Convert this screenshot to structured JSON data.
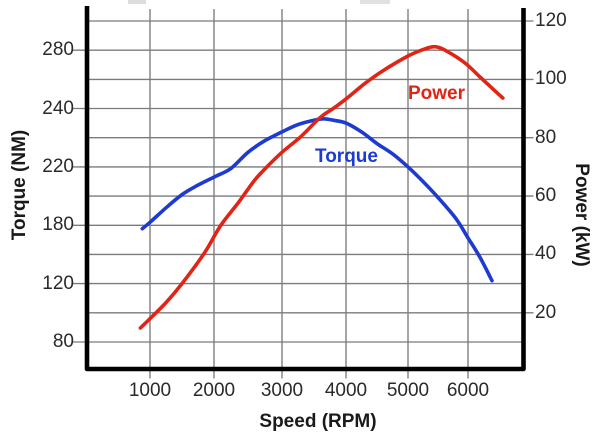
{
  "chart": {
    "x_axis": {
      "label": "Speed (RPM)",
      "ticks": [
        "1000",
        "2000",
        "3000",
        "4000",
        "5000",
        "6000"
      ]
    },
    "y_left_axis": {
      "label": "Torque (NM)",
      "ticks": [
        "280",
        "240",
        "220",
        "180",
        "120",
        "80"
      ]
    },
    "y_right_axis": {
      "label": "Power (kW)",
      "ticks": [
        "120",
        "100",
        "80",
        "60",
        "40",
        "20"
      ]
    },
    "curve_labels": {
      "power": "Power",
      "torque": "Torque"
    },
    "colors": {
      "power_red": "#e02416",
      "torque_blue": "#1d3ad1",
      "gridline": "#7b7b7b",
      "axis_border": "#000000",
      "tick_text": "#2a2a2a"
    }
  },
  "chart_data": {
    "type": "line",
    "title": "",
    "xlabel": "Speed (RPM)",
    "ylabel_left": "Torque (NM)",
    "ylabel_right": "Power (kW)",
    "x_ticks": [
      1000,
      2000,
      3000,
      4000,
      5000,
      6000
    ],
    "y_left_tick_labels_as_printed": [
      280,
      240,
      220,
      180,
      120,
      80
    ],
    "y_right_ticks": [
      120,
      100,
      80,
      60,
      40,
      20
    ],
    "grid": true,
    "legend_position": "inline-curve-labels",
    "series": [
      {
        "name": "Torque",
        "axis": "left",
        "unit": "NM",
        "color": "#1d3ad1",
        "points": [
          [
            880,
            176.5
          ],
          [
            1000,
            182
          ],
          [
            1250,
            192
          ],
          [
            1500,
            201
          ],
          [
            1750,
            207.5
          ],
          [
            2000,
            213
          ],
          [
            2250,
            219
          ],
          [
            2500,
            225
          ],
          [
            2750,
            229
          ],
          [
            3000,
            232
          ],
          [
            3250,
            234.5
          ],
          [
            3500,
            236
          ],
          [
            3650,
            236.5
          ],
          [
            3800,
            236
          ],
          [
            4000,
            235
          ],
          [
            4250,
            232
          ],
          [
            4500,
            228
          ],
          [
            4750,
            224.5
          ],
          [
            5000,
            220
          ],
          [
            5250,
            210
          ],
          [
            5500,
            199
          ],
          [
            5800,
            184.5
          ],
          [
            6000,
            167
          ],
          [
            6200,
            147
          ],
          [
            6400,
            123
          ]
        ]
      },
      {
        "name": "Power",
        "axis": "right",
        "unit": "kW",
        "color": "#e02416",
        "points": [
          [
            850,
            14.8
          ],
          [
            1000,
            18
          ],
          [
            1250,
            23.5
          ],
          [
            1500,
            30
          ],
          [
            1850,
            40.5
          ],
          [
            2100,
            50
          ],
          [
            2350,
            57.5
          ],
          [
            2600,
            65.5
          ],
          [
            2800,
            70.5
          ],
          [
            3000,
            75
          ],
          [
            3300,
            80.5
          ],
          [
            3600,
            87
          ],
          [
            3800,
            90
          ],
          [
            4000,
            93.3
          ],
          [
            4300,
            98.5
          ],
          [
            4600,
            103
          ],
          [
            5000,
            108
          ],
          [
            5250,
            110.2
          ],
          [
            5450,
            111.2
          ],
          [
            5650,
            109.6
          ],
          [
            5950,
            105.6
          ],
          [
            6200,
            100.8
          ],
          [
            6400,
            97
          ],
          [
            6580,
            93.6
          ]
        ]
      }
    ]
  }
}
